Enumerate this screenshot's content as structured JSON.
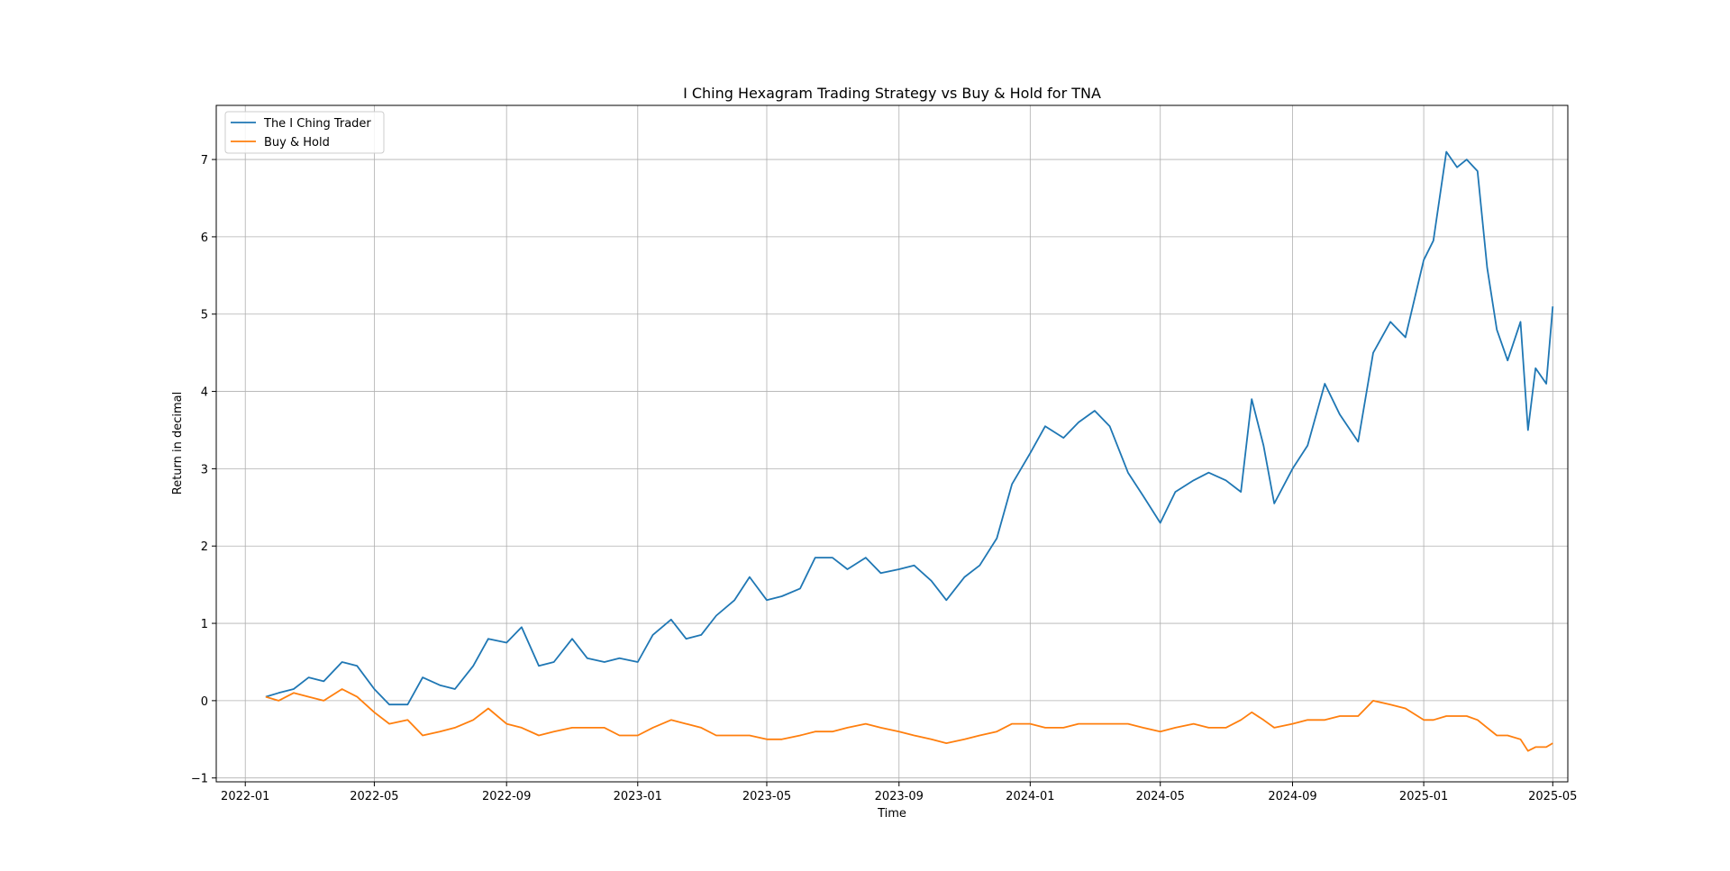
{
  "chart_data": {
    "type": "line",
    "title": "I Ching Hexagram Trading Strategy vs Buy & Hold for TNA",
    "xlabel": "Time",
    "ylabel": "Return in decimal",
    "xlim": [
      "2021-12-05",
      "2025-05-15"
    ],
    "ylim": [
      -1.05,
      7.7
    ],
    "x_ticks": [
      "2022-01",
      "2022-05",
      "2022-09",
      "2023-01",
      "2023-05",
      "2023-09",
      "2024-01",
      "2024-05",
      "2024-09",
      "2025-01",
      "2025-05"
    ],
    "y_ticks": [
      -1,
      0,
      1,
      2,
      3,
      4,
      5,
      6,
      7
    ],
    "grid": true,
    "legend_position": "upper-left",
    "series": [
      {
        "name": "The I Ching Trader",
        "color": "#1f77b4",
        "points": [
          [
            "2022-01-20",
            0.05
          ],
          [
            "2022-02-01",
            0.1
          ],
          [
            "2022-02-15",
            0.15
          ],
          [
            "2022-03-01",
            0.3
          ],
          [
            "2022-03-15",
            0.25
          ],
          [
            "2022-04-01",
            0.5
          ],
          [
            "2022-04-15",
            0.45
          ],
          [
            "2022-05-01",
            0.15
          ],
          [
            "2022-05-15",
            -0.05
          ],
          [
            "2022-06-01",
            -0.05
          ],
          [
            "2022-06-15",
            0.3
          ],
          [
            "2022-07-01",
            0.2
          ],
          [
            "2022-07-15",
            0.15
          ],
          [
            "2022-08-01",
            0.45
          ],
          [
            "2022-08-15",
            0.8
          ],
          [
            "2022-09-01",
            0.75
          ],
          [
            "2022-09-15",
            0.95
          ],
          [
            "2022-10-01",
            0.45
          ],
          [
            "2022-10-15",
            0.5
          ],
          [
            "2022-11-01",
            0.8
          ],
          [
            "2022-11-15",
            0.55
          ],
          [
            "2022-12-01",
            0.5
          ],
          [
            "2022-12-15",
            0.55
          ],
          [
            "2023-01-01",
            0.5
          ],
          [
            "2023-01-15",
            0.85
          ],
          [
            "2023-02-01",
            1.05
          ],
          [
            "2023-02-15",
            0.8
          ],
          [
            "2023-03-01",
            0.85
          ],
          [
            "2023-03-15",
            1.1
          ],
          [
            "2023-04-01",
            1.3
          ],
          [
            "2023-04-15",
            1.6
          ],
          [
            "2023-05-01",
            1.3
          ],
          [
            "2023-05-15",
            1.35
          ],
          [
            "2023-06-01",
            1.45
          ],
          [
            "2023-06-15",
            1.85
          ],
          [
            "2023-07-01",
            1.85
          ],
          [
            "2023-07-15",
            1.7
          ],
          [
            "2023-08-01",
            1.85
          ],
          [
            "2023-08-15",
            1.65
          ],
          [
            "2023-09-01",
            1.7
          ],
          [
            "2023-09-15",
            1.75
          ],
          [
            "2023-10-01",
            1.55
          ],
          [
            "2023-10-15",
            1.3
          ],
          [
            "2023-11-01",
            1.6
          ],
          [
            "2023-11-15",
            1.75
          ],
          [
            "2023-12-01",
            2.1
          ],
          [
            "2023-12-15",
            2.8
          ],
          [
            "2024-01-01",
            3.2
          ],
          [
            "2024-01-15",
            3.55
          ],
          [
            "2024-02-01",
            3.4
          ],
          [
            "2024-02-15",
            3.6
          ],
          [
            "2024-03-01",
            3.75
          ],
          [
            "2024-03-15",
            3.55
          ],
          [
            "2024-04-01",
            2.95
          ],
          [
            "2024-04-15",
            2.65
          ],
          [
            "2024-05-01",
            2.3
          ],
          [
            "2024-05-15",
            2.7
          ],
          [
            "2024-06-01",
            2.85
          ],
          [
            "2024-06-15",
            2.95
          ],
          [
            "2024-07-01",
            2.85
          ],
          [
            "2024-07-15",
            2.7
          ],
          [
            "2024-07-25",
            3.9
          ],
          [
            "2024-08-05",
            3.3
          ],
          [
            "2024-08-15",
            2.55
          ],
          [
            "2024-09-01",
            3.0
          ],
          [
            "2024-09-15",
            3.3
          ],
          [
            "2024-10-01",
            4.1
          ],
          [
            "2024-10-15",
            3.7
          ],
          [
            "2024-11-01",
            3.35
          ],
          [
            "2024-11-15",
            4.5
          ],
          [
            "2024-12-01",
            4.9
          ],
          [
            "2024-12-15",
            4.7
          ],
          [
            "2025-01-01",
            5.7
          ],
          [
            "2025-01-10",
            5.95
          ],
          [
            "2025-01-22",
            7.1
          ],
          [
            "2025-02-01",
            6.9
          ],
          [
            "2025-02-10",
            7.0
          ],
          [
            "2025-02-20",
            6.85
          ],
          [
            "2025-03-01",
            5.6
          ],
          [
            "2025-03-10",
            4.8
          ],
          [
            "2025-03-20",
            4.4
          ],
          [
            "2025-04-01",
            4.9
          ],
          [
            "2025-04-08",
            3.5
          ],
          [
            "2025-04-15",
            4.3
          ],
          [
            "2025-04-25",
            4.1
          ],
          [
            "2025-05-01",
            5.1
          ]
        ]
      },
      {
        "name": "Buy & Hold",
        "color": "#ff7f0e",
        "points": [
          [
            "2022-01-20",
            0.05
          ],
          [
            "2022-02-01",
            0.0
          ],
          [
            "2022-02-15",
            0.1
          ],
          [
            "2022-03-01",
            0.05
          ],
          [
            "2022-03-15",
            0.0
          ],
          [
            "2022-04-01",
            0.15
          ],
          [
            "2022-04-15",
            0.05
          ],
          [
            "2022-05-01",
            -0.15
          ],
          [
            "2022-05-15",
            -0.3
          ],
          [
            "2022-06-01",
            -0.25
          ],
          [
            "2022-06-15",
            -0.45
          ],
          [
            "2022-07-01",
            -0.4
          ],
          [
            "2022-07-15",
            -0.35
          ],
          [
            "2022-08-01",
            -0.25
          ],
          [
            "2022-08-15",
            -0.1
          ],
          [
            "2022-09-01",
            -0.3
          ],
          [
            "2022-09-15",
            -0.35
          ],
          [
            "2022-10-01",
            -0.45
          ],
          [
            "2022-10-15",
            -0.4
          ],
          [
            "2022-11-01",
            -0.35
          ],
          [
            "2022-11-15",
            -0.35
          ],
          [
            "2022-12-01",
            -0.35
          ],
          [
            "2022-12-15",
            -0.45
          ],
          [
            "2023-01-01",
            -0.45
          ],
          [
            "2023-01-15",
            -0.35
          ],
          [
            "2023-02-01",
            -0.25
          ],
          [
            "2023-02-15",
            -0.3
          ],
          [
            "2023-03-01",
            -0.35
          ],
          [
            "2023-03-15",
            -0.45
          ],
          [
            "2023-04-01",
            -0.45
          ],
          [
            "2023-04-15",
            -0.45
          ],
          [
            "2023-05-01",
            -0.5
          ],
          [
            "2023-05-15",
            -0.5
          ],
          [
            "2023-06-01",
            -0.45
          ],
          [
            "2023-06-15",
            -0.4
          ],
          [
            "2023-07-01",
            -0.4
          ],
          [
            "2023-07-15",
            -0.35
          ],
          [
            "2023-08-01",
            -0.3
          ],
          [
            "2023-08-15",
            -0.35
          ],
          [
            "2023-09-01",
            -0.4
          ],
          [
            "2023-09-15",
            -0.45
          ],
          [
            "2023-10-01",
            -0.5
          ],
          [
            "2023-10-15",
            -0.55
          ],
          [
            "2023-11-01",
            -0.5
          ],
          [
            "2023-11-15",
            -0.45
          ],
          [
            "2023-12-01",
            -0.4
          ],
          [
            "2023-12-15",
            -0.3
          ],
          [
            "2024-01-01",
            -0.3
          ],
          [
            "2024-01-15",
            -0.35
          ],
          [
            "2024-02-01",
            -0.35
          ],
          [
            "2024-02-15",
            -0.3
          ],
          [
            "2024-03-01",
            -0.3
          ],
          [
            "2024-03-15",
            -0.3
          ],
          [
            "2024-04-01",
            -0.3
          ],
          [
            "2024-04-15",
            -0.35
          ],
          [
            "2024-05-01",
            -0.4
          ],
          [
            "2024-05-15",
            -0.35
          ],
          [
            "2024-06-01",
            -0.3
          ],
          [
            "2024-06-15",
            -0.35
          ],
          [
            "2024-07-01",
            -0.35
          ],
          [
            "2024-07-15",
            -0.25
          ],
          [
            "2024-07-25",
            -0.15
          ],
          [
            "2024-08-05",
            -0.25
          ],
          [
            "2024-08-15",
            -0.35
          ],
          [
            "2024-09-01",
            -0.3
          ],
          [
            "2024-09-15",
            -0.25
          ],
          [
            "2024-10-01",
            -0.25
          ],
          [
            "2024-10-15",
            -0.2
          ],
          [
            "2024-11-01",
            -0.2
          ],
          [
            "2024-11-15",
            0.0
          ],
          [
            "2024-12-01",
            -0.05
          ],
          [
            "2024-12-15",
            -0.1
          ],
          [
            "2025-01-01",
            -0.25
          ],
          [
            "2025-01-10",
            -0.25
          ],
          [
            "2025-01-22",
            -0.2
          ],
          [
            "2025-02-01",
            -0.2
          ],
          [
            "2025-02-10",
            -0.2
          ],
          [
            "2025-02-20",
            -0.25
          ],
          [
            "2025-03-01",
            -0.35
          ],
          [
            "2025-03-10",
            -0.45
          ],
          [
            "2025-03-20",
            -0.45
          ],
          [
            "2025-04-01",
            -0.5
          ],
          [
            "2025-04-08",
            -0.65
          ],
          [
            "2025-04-15",
            -0.6
          ],
          [
            "2025-04-25",
            -0.6
          ],
          [
            "2025-05-01",
            -0.55
          ]
        ]
      }
    ]
  }
}
